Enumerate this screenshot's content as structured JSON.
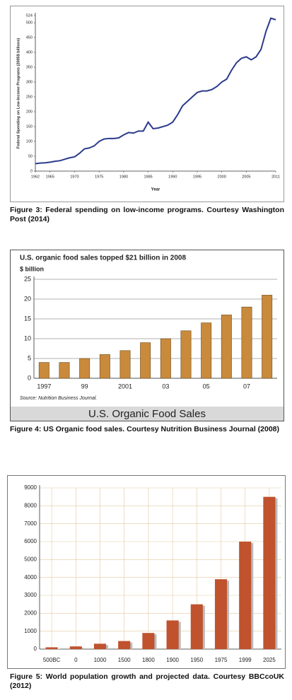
{
  "chart_data": [
    {
      "type": "line",
      "ylabel": "Federal Spending on Low-Income Programs (2005$ billions)",
      "xlabel": "Year",
      "caption": "Figure 3: Federal spending on low-income programs. Courtesy Washington Post (2014)",
      "x": [
        1962,
        1963,
        1964,
        1965,
        1966,
        1967,
        1968,
        1969,
        1970,
        1971,
        1972,
        1973,
        1974,
        1975,
        1976,
        1977,
        1978,
        1979,
        1980,
        1981,
        1982,
        1983,
        1984,
        1985,
        1986,
        1987,
        1988,
        1989,
        1990,
        1991,
        1992,
        1993,
        1994,
        1995,
        1996,
        1997,
        1998,
        1999,
        2000,
        2001,
        2002,
        2003,
        2004,
        2005,
        2006,
        2007,
        2008,
        2009,
        2010,
        2011
      ],
      "series": [
        {
          "color": "#2b3a8c",
          "values": [
            25,
            27,
            28,
            30,
            33,
            35,
            40,
            45,
            48,
            60,
            75,
            78,
            85,
            100,
            108,
            110,
            110,
            112,
            122,
            130,
            128,
            135,
            135,
            165,
            143,
            145,
            150,
            155,
            165,
            190,
            220,
            235,
            250,
            265,
            270,
            270,
            275,
            285,
            300,
            310,
            340,
            365,
            380,
            385,
            375,
            385,
            410,
            470,
            515,
            510
          ]
        }
      ],
      "xlim": [
        1962,
        2011
      ],
      "xticks": [
        1962,
        1965,
        1970,
        1975,
        1980,
        1985,
        1990,
        1995,
        2000,
        2005,
        2011
      ],
      "ylim": [
        0,
        524
      ],
      "yticks": [
        0,
        50,
        100,
        150,
        200,
        250,
        300,
        350,
        400,
        450,
        500,
        524
      ],
      "grid": false
    },
    {
      "type": "bar",
      "title": "U.S. organic food sales topped $21 billion in 2008",
      "ylabel": "$ billion",
      "source": "Source: Nutrition Business Journal.",
      "banner": "U.S. Organic Food Sales",
      "caption": "Figure 4: US Organic food sales. Courtesy Nutrition Business Journal (2008)",
      "categories": [
        "1997",
        null,
        "99",
        null,
        "2001",
        null,
        "03",
        null,
        "05",
        null,
        "07",
        null
      ],
      "values": [
        4,
        4,
        5,
        6,
        7,
        9,
        10,
        12,
        14,
        16,
        18,
        21
      ],
      "color": "#c98a3c",
      "ylim": [
        0,
        25
      ],
      "yticks": [
        0,
        5,
        10,
        15,
        20,
        25
      ],
      "grid": true
    },
    {
      "type": "bar",
      "caption": "Figure 5: World population growth and projected data. Courtesy BBCcoUK (2012)",
      "categories": [
        "500BC",
        "0",
        "1000",
        "1500",
        "1800",
        "1900",
        "1950",
        "1975",
        "1999",
        "2025"
      ],
      "values": [
        100,
        150,
        300,
        450,
        900,
        1600,
        2500,
        3900,
        6000,
        8500
      ],
      "color": "#c0522e",
      "ylim": [
        0,
        9000
      ],
      "yticks": [
        0,
        1000,
        2000,
        3000,
        4000,
        5000,
        6000,
        7000,
        8000,
        9000
      ],
      "grid": true
    }
  ]
}
